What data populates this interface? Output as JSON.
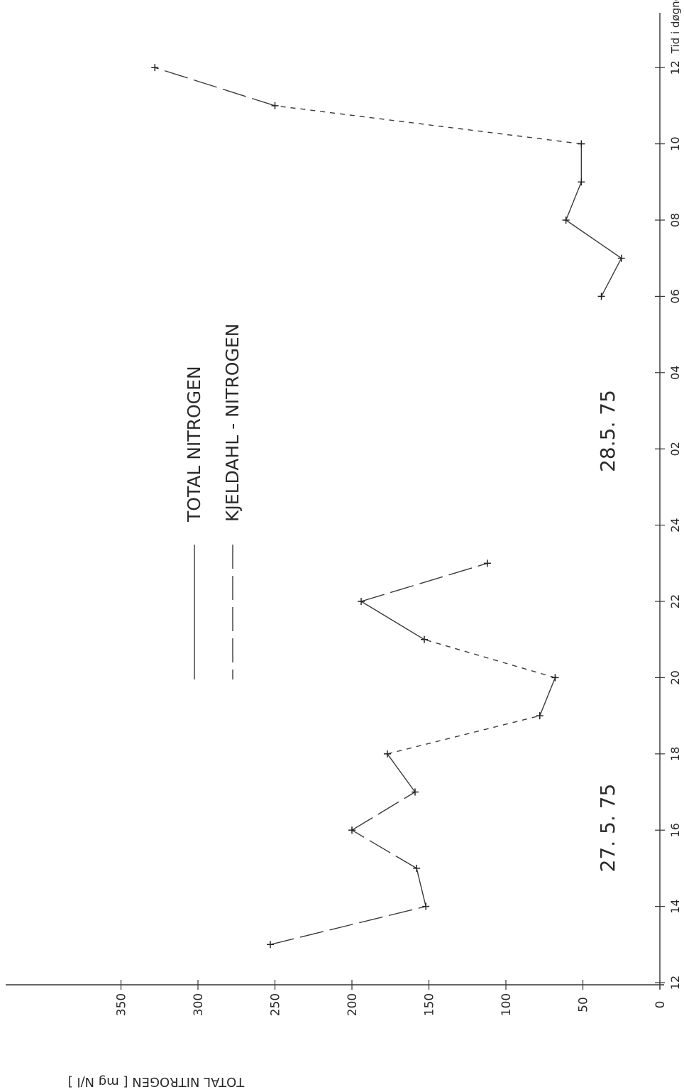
{
  "chart_data": {
    "type": "line",
    "title": "",
    "ylabel": "TOTAL NITROGEN [ mg N/l ]",
    "xlabel": "Tid i døgnet",
    "ylim": [
      0,
      350
    ],
    "y_ticks": [
      "0",
      "50",
      "100",
      "150",
      "200",
      "250",
      "300",
      "350"
    ],
    "x_ticks": [
      "12",
      "14",
      "16",
      "18",
      "20",
      "22",
      "24",
      "02",
      "04",
      "06",
      "08",
      "10",
      "12"
    ],
    "x_end_label": "Tid i døgnet",
    "date_labels": [
      "27. 5. 75",
      "28.5. 75"
    ],
    "legend": {
      "placement": "top-center",
      "entries": [
        {
          "label": "TOTAL   NITROGEN",
          "style": "solid"
        },
        {
          "label": "KJELDAHL - NITROGEN",
          "style": "dashed"
        }
      ]
    },
    "series": [
      {
        "x": [
          "13:00",
          "14:00",
          "15:00",
          "16:00",
          "17:00",
          "18:00",
          "19:00",
          "20:00",
          "21:00",
          "22:00",
          "23:00"
        ],
        "values": [
          253,
          152,
          158,
          200,
          159,
          177,
          78,
          68,
          153,
          194,
          112
        ],
        "segment_styles": [
          "long-dash",
          "solid",
          "long-dash",
          "long-dash",
          "solid",
          "short-dash",
          "solid",
          "short-dash",
          "solid",
          "long-dash"
        ]
      },
      {
        "x": [
          "06:00",
          "07:00",
          "08:00",
          "09:00",
          "10:00",
          "11:00",
          "12:00"
        ],
        "values": [
          38,
          25,
          61,
          51,
          51,
          250,
          328
        ],
        "segment_styles": [
          "solid",
          "solid",
          "solid",
          "solid",
          "short-dash",
          "long-dash"
        ]
      }
    ]
  }
}
